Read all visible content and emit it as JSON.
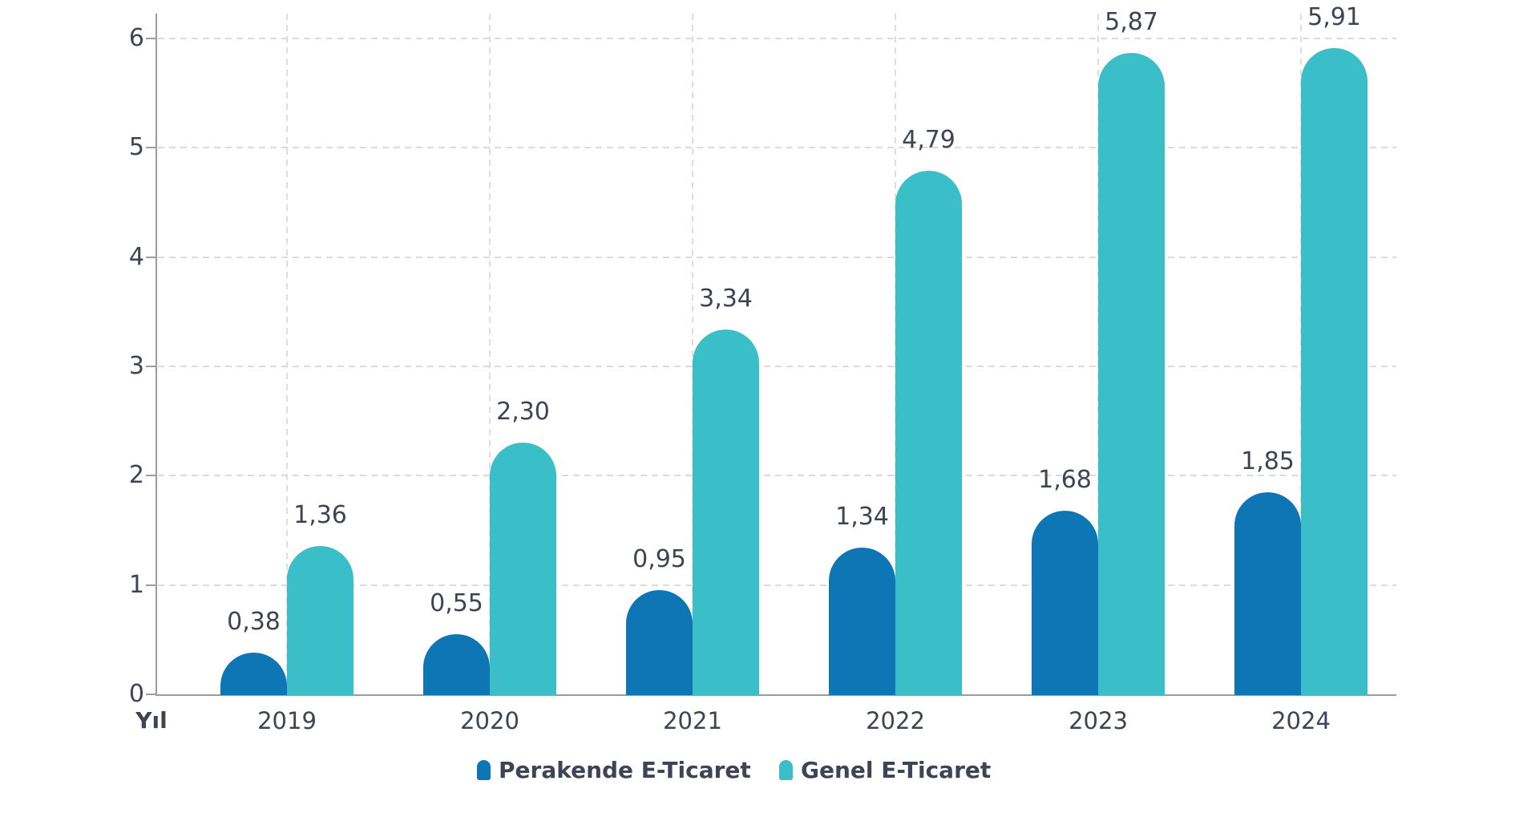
{
  "chart_data": {
    "type": "bar",
    "title": "",
    "xlabel": "Yıl",
    "ylabel": "",
    "ylim": [
      0,
      6
    ],
    "y_ticks": [
      "0",
      "1",
      "2",
      "3",
      "4",
      "5",
      "6"
    ],
    "grid": true,
    "legend_position": "bottom",
    "categories": [
      "2019",
      "2020",
      "2021",
      "2022",
      "2023",
      "2024"
    ],
    "series": [
      {
        "name": "Perakende E-Ticaret",
        "color": "#0E76B5",
        "values": [
          0.38,
          0.55,
          0.95,
          1.34,
          1.68,
          1.85
        ],
        "value_labels": [
          "0,38",
          "0,55",
          "0,95",
          "1,34",
          "1,68",
          "1,85"
        ]
      },
      {
        "name": "Genel E-Ticaret",
        "color": "#3ABEC8",
        "values": [
          1.36,
          2.3,
          3.34,
          4.79,
          5.87,
          5.91
        ],
        "value_labels": [
          "1,36",
          "2,30",
          "3,34",
          "4,79",
          "5,87",
          "5,91"
        ]
      }
    ]
  },
  "colors": {
    "background": "#FFFFFF",
    "text": "#3E4356",
    "axis": "#9C9CA0",
    "gridline": "#DBDBDB",
    "series_perakende": "#0E76B5",
    "series_genel": "#3ABEC8"
  }
}
